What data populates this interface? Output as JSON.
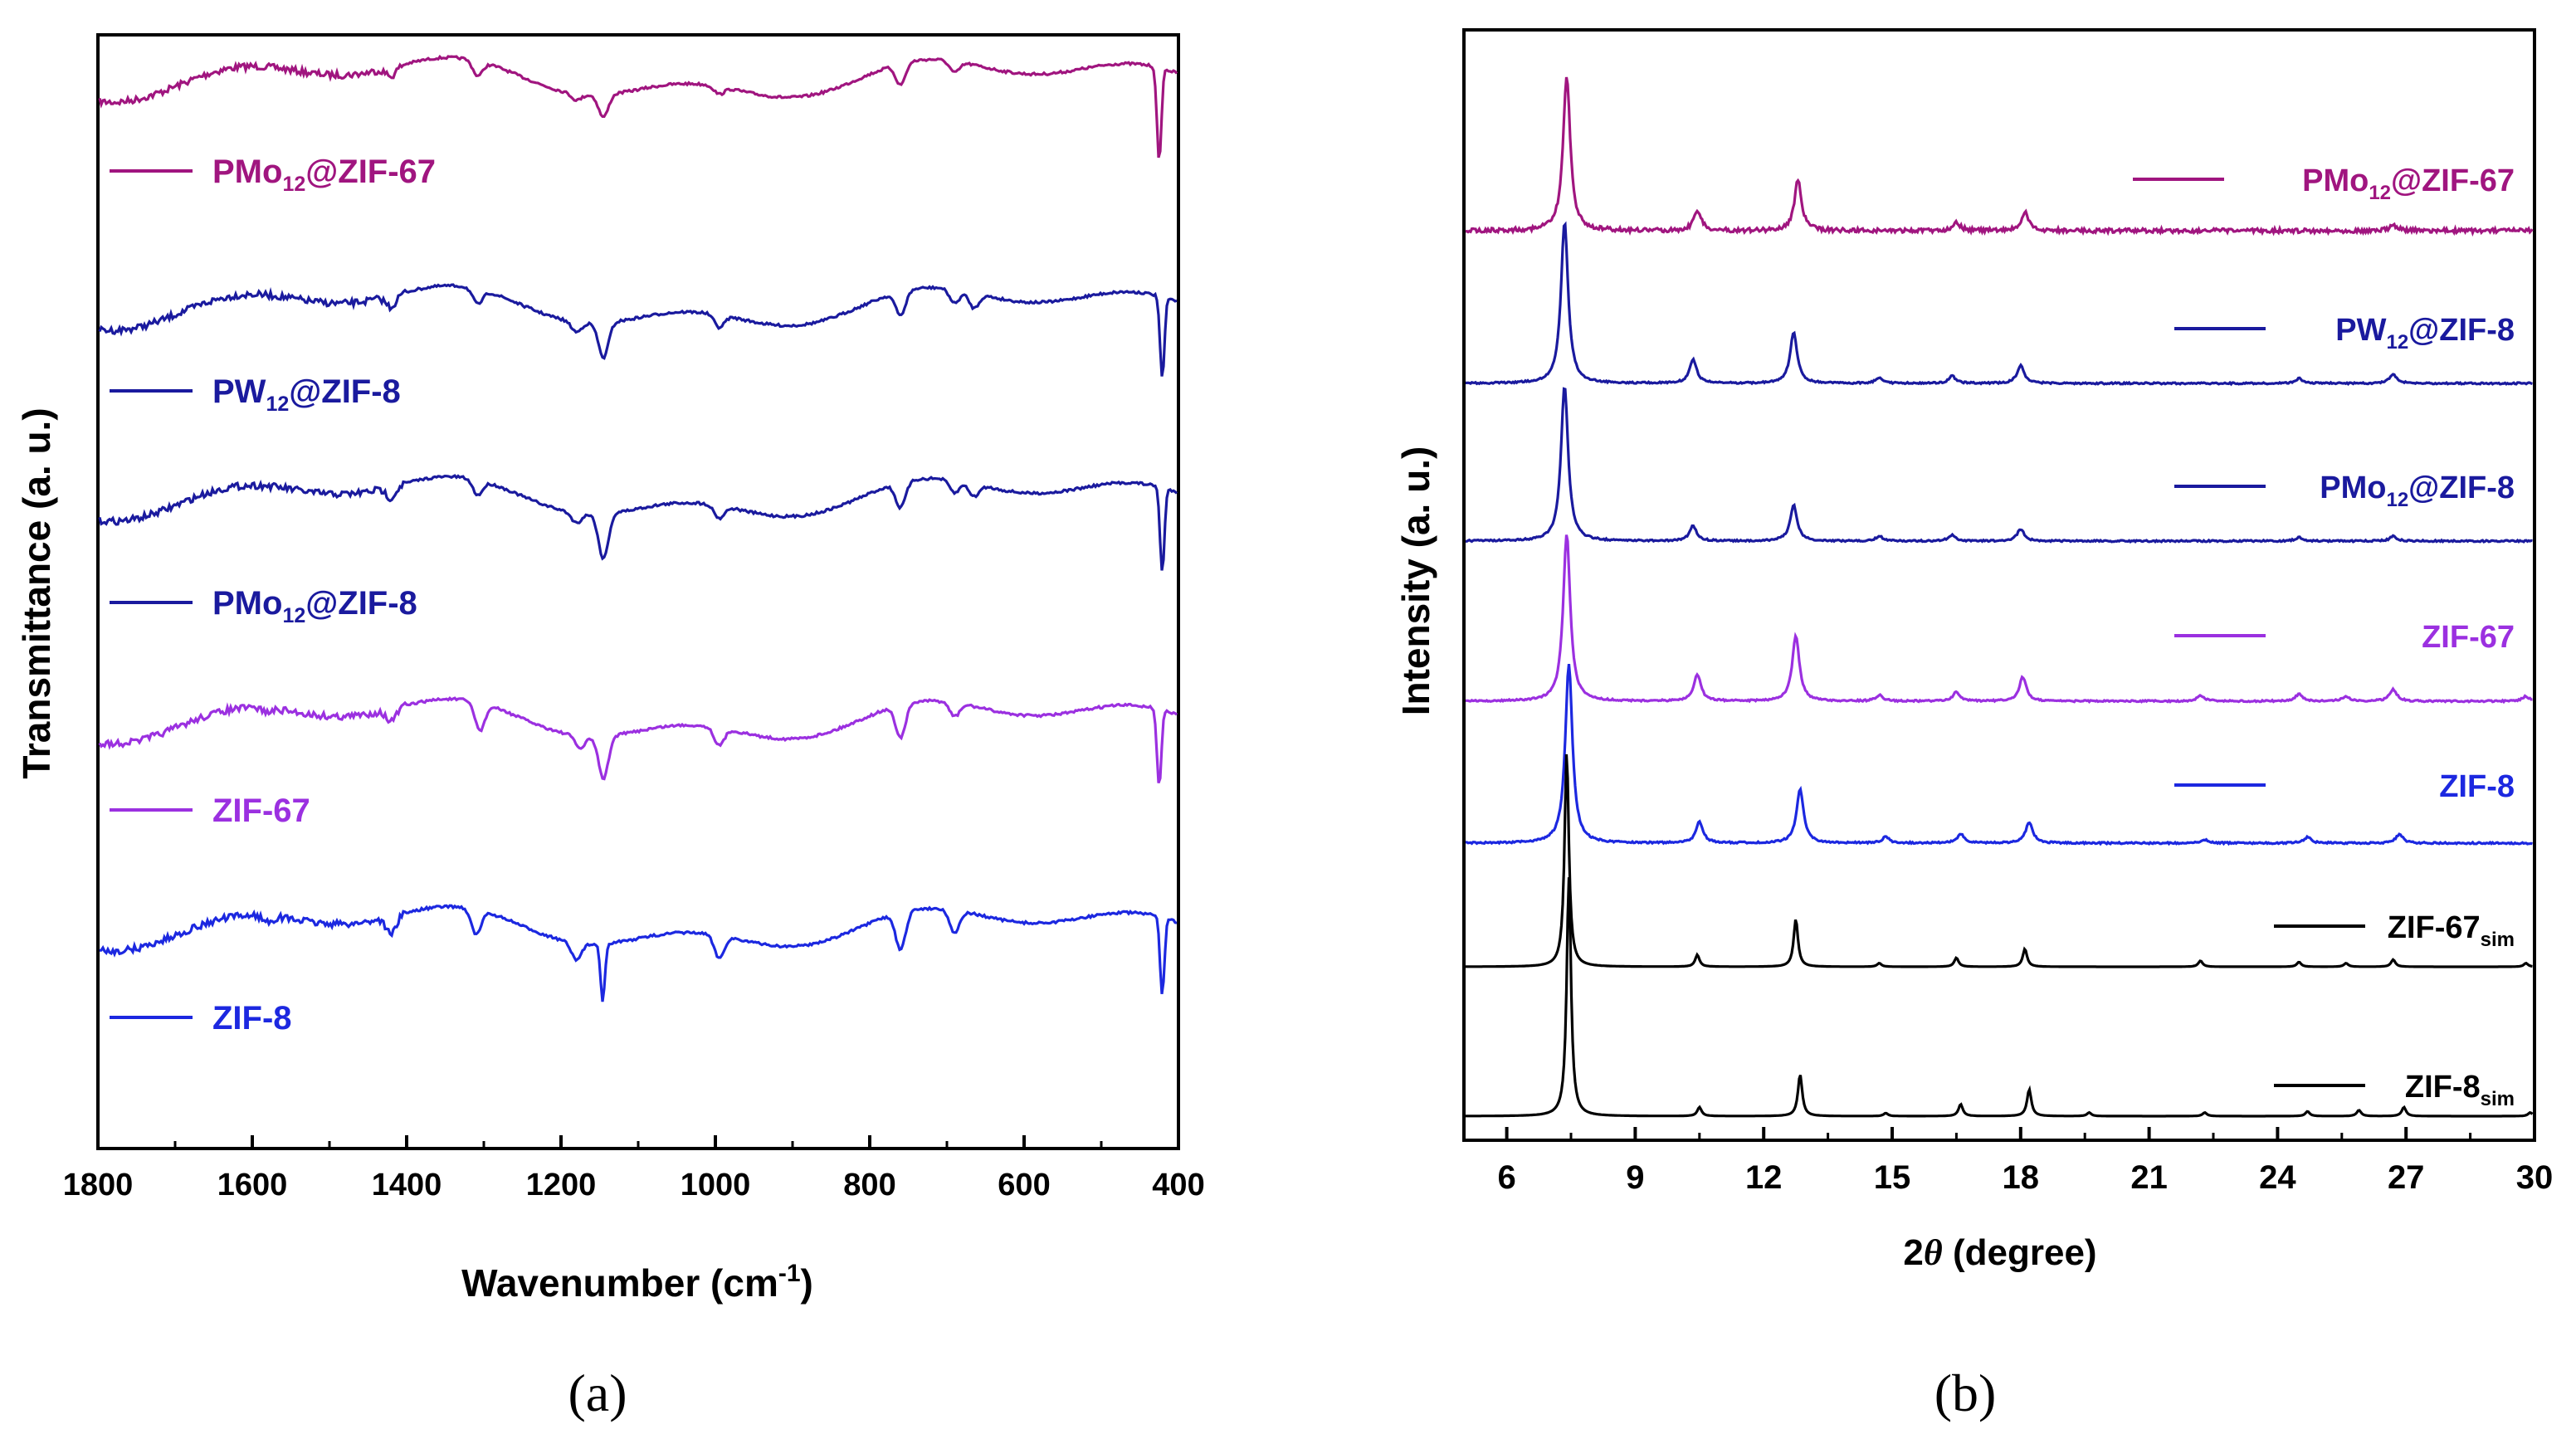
{
  "chart_data": [
    {
      "type": "line",
      "panel": "(a)",
      "xlabel": "Wavenumber (cm",
      "xlabel_sup": "-1",
      "xlabel_end": ")",
      "ylabel": "Transmittance (a. u.)",
      "xlim": [
        1800,
        400
      ],
      "xticks": [
        1800,
        1600,
        1400,
        1200,
        1000,
        800,
        600,
        400
      ],
      "series": [
        {
          "name": "PMo12@ZIF-67",
          "label_main": "PMo",
          "label_sub": "12",
          "label_end": "@ZIF-67",
          "color": "#a0157f",
          "peaks": [
            {
              "x": 1420,
              "d": 0.35
            },
            {
              "x": 1308,
              "d": 0.6
            },
            {
              "x": 1180,
              "d": 0.25
            },
            {
              "x": 1145,
              "d": 0.9
            },
            {
              "x": 995,
              "d": 0.3
            },
            {
              "x": 760,
              "d": 0.85
            },
            {
              "x": 690,
              "d": 0.45
            },
            {
              "x": 425,
              "d": 3.8
            }
          ]
        },
        {
          "name": "PW12@ZIF-8",
          "label_main": "PW",
          "label_sub": "12",
          "label_end": "@ZIF-8",
          "color": "#1a1a9e",
          "peaks": [
            {
              "x": 1420,
              "d": 0.45
            },
            {
              "x": 1308,
              "d": 0.6
            },
            {
              "x": 1180,
              "d": 0.4
            },
            {
              "x": 1145,
              "d": 1.4
            },
            {
              "x": 995,
              "d": 0.5
            },
            {
              "x": 760,
              "d": 0.95
            },
            {
              "x": 690,
              "d": 0.55
            },
            {
              "x": 665,
              "d": 0.6
            },
            {
              "x": 421,
              "d": 3.3
            }
          ]
        },
        {
          "name": "PMo12@ZIF-8",
          "label_main": "PMo",
          "label_sub": "12",
          "label_end": "@ZIF-8",
          "color": "#1a1a9e",
          "peaks": [
            {
              "x": 1420,
              "d": 0.45
            },
            {
              "x": 1308,
              "d": 0.6
            },
            {
              "x": 1180,
              "d": 0.4
            },
            {
              "x": 1145,
              "d": 1.8
            },
            {
              "x": 995,
              "d": 0.5
            },
            {
              "x": 760,
              "d": 1.0
            },
            {
              "x": 690,
              "d": 0.5
            },
            {
              "x": 665,
              "d": 0.5
            },
            {
              "x": 421,
              "d": 3.4
            }
          ]
        },
        {
          "name": "ZIF-67",
          "label_main": "ZIF-67",
          "label_sub": "",
          "label_end": "",
          "color": "#9b30e0",
          "peaks": [
            {
              "x": 1580,
              "d": 0.15
            },
            {
              "x": 1420,
              "d": 0.5
            },
            {
              "x": 1305,
              "d": 1.1
            },
            {
              "x": 1175,
              "d": 0.5
            },
            {
              "x": 1145,
              "d": 1.7
            },
            {
              "x": 995,
              "d": 0.7
            },
            {
              "x": 760,
              "d": 1.3
            },
            {
              "x": 690,
              "d": 0.55
            },
            {
              "x": 425,
              "d": 3.1
            }
          ]
        },
        {
          "name": "ZIF-8",
          "label_main": "ZIF-8",
          "label_sub": "",
          "label_end": "",
          "color": "#1c28e0",
          "peaks": [
            {
              "x": 1580,
              "d": 0.25
            },
            {
              "x": 1420,
              "d": 0.7
            },
            {
              "x": 1310,
              "d": 1.0
            },
            {
              "x": 1180,
              "d": 0.7
            },
            {
              "x": 1146,
              "d": 2.3
            },
            {
              "x": 995,
              "d": 0.9
            },
            {
              "x": 760,
              "d": 1.5
            },
            {
              "x": 690,
              "d": 0.9
            },
            {
              "x": 421,
              "d": 3.1
            }
          ]
        }
      ]
    },
    {
      "type": "line",
      "panel": "(b)",
      "xlabel": "2",
      "xlabel_theta": "θ",
      "xlabel_end": " (degree)",
      "ylabel": "Intensity (a. u.)",
      "xlim": [
        5,
        30
      ],
      "xticks": [
        6,
        9,
        12,
        15,
        18,
        21,
        24,
        27,
        30
      ],
      "series": [
        {
          "name": "PMo12@ZIF-67",
          "label_main": "PMo",
          "label_sub": "12",
          "label_end": "@ZIF-67",
          "color": "#a0157f",
          "peaks": [
            {
              "x": 7.4,
              "h": 2.6
            },
            {
              "x": 10.45,
              "h": 0.35
            },
            {
              "x": 12.8,
              "h": 0.85
            },
            {
              "x": 16.5,
              "h": 0.15
            },
            {
              "x": 18.1,
              "h": 0.3
            },
            {
              "x": 26.7,
              "h": 0.1
            }
          ]
        },
        {
          "name": "PW12@ZIF-8",
          "label_main": "PW",
          "label_sub": "12",
          "label_end": "@ZIF-8",
          "color": "#1a1a9e",
          "peaks": [
            {
              "x": 7.35,
              "h": 2.7
            },
            {
              "x": 10.35,
              "h": 0.4
            },
            {
              "x": 12.7,
              "h": 0.85
            },
            {
              "x": 14.7,
              "h": 0.1
            },
            {
              "x": 16.4,
              "h": 0.12
            },
            {
              "x": 18.0,
              "h": 0.3
            },
            {
              "x": 24.5,
              "h": 0.08
            },
            {
              "x": 26.7,
              "h": 0.15
            }
          ]
        },
        {
          "name": "PMo12@ZIF-8",
          "label_main": "PMo",
          "label_sub": "12",
          "label_end": "@ZIF-8",
          "color": "#1a1a9e",
          "peaks": [
            {
              "x": 7.35,
              "h": 2.6
            },
            {
              "x": 10.35,
              "h": 0.25
            },
            {
              "x": 12.7,
              "h": 0.6
            },
            {
              "x": 14.7,
              "h": 0.08
            },
            {
              "x": 16.4,
              "h": 0.1
            },
            {
              "x": 18.0,
              "h": 0.2
            },
            {
              "x": 24.5,
              "h": 0.06
            },
            {
              "x": 26.7,
              "h": 0.08
            }
          ]
        },
        {
          "name": "ZIF-67",
          "label_main": "ZIF-67",
          "label_sub": "",
          "label_end": "",
          "color": "#9b30e0",
          "peaks": [
            {
              "x": 7.4,
              "h": 2.8
            },
            {
              "x": 10.45,
              "h": 0.45
            },
            {
              "x": 12.75,
              "h": 1.1
            },
            {
              "x": 14.7,
              "h": 0.1
            },
            {
              "x": 16.5,
              "h": 0.15
            },
            {
              "x": 18.05,
              "h": 0.4
            },
            {
              "x": 22.2,
              "h": 0.1
            },
            {
              "x": 24.5,
              "h": 0.12
            },
            {
              "x": 25.6,
              "h": 0.08
            },
            {
              "x": 26.7,
              "h": 0.2
            },
            {
              "x": 29.8,
              "h": 0.08
            }
          ]
        },
        {
          "name": "ZIF-8",
          "label_main": "ZIF-8",
          "label_sub": "",
          "label_end": "",
          "color": "#1c28e0",
          "peaks": [
            {
              "x": 7.45,
              "h": 3.0
            },
            {
              "x": 10.5,
              "h": 0.35
            },
            {
              "x": 12.85,
              "h": 0.9
            },
            {
              "x": 14.85,
              "h": 0.1
            },
            {
              "x": 16.6,
              "h": 0.15
            },
            {
              "x": 18.2,
              "h": 0.35
            },
            {
              "x": 22.3,
              "h": 0.06
            },
            {
              "x": 24.7,
              "h": 0.1
            },
            {
              "x": 26.85,
              "h": 0.15
            }
          ]
        },
        {
          "name": "ZIF-67sim",
          "label_main": "ZIF-67",
          "label_sub": "sim",
          "label_end": "",
          "color": "#000000",
          "peaks": [
            {
              "x": 7.4,
              "h": 3.6
            },
            {
              "x": 10.45,
              "h": 0.2
            },
            {
              "x": 12.75,
              "h": 0.8
            },
            {
              "x": 14.7,
              "h": 0.06
            },
            {
              "x": 16.5,
              "h": 0.15
            },
            {
              "x": 18.1,
              "h": 0.3
            },
            {
              "x": 22.2,
              "h": 0.1
            },
            {
              "x": 24.5,
              "h": 0.08
            },
            {
              "x": 25.6,
              "h": 0.06
            },
            {
              "x": 26.7,
              "h": 0.12
            },
            {
              "x": 29.8,
              "h": 0.06
            }
          ]
        },
        {
          "name": "ZIF-8sim",
          "label_main": "ZIF-8",
          "label_sub": "sim",
          "label_end": "",
          "color": "#000000",
          "peaks": [
            {
              "x": 7.45,
              "h": 4.0
            },
            {
              "x": 10.5,
              "h": 0.15
            },
            {
              "x": 12.85,
              "h": 0.7
            },
            {
              "x": 14.85,
              "h": 0.05
            },
            {
              "x": 16.6,
              "h": 0.2
            },
            {
              "x": 18.2,
              "h": 0.45
            },
            {
              "x": 19.6,
              "h": 0.06
            },
            {
              "x": 22.3,
              "h": 0.06
            },
            {
              "x": 24.7,
              "h": 0.08
            },
            {
              "x": 25.9,
              "h": 0.1
            },
            {
              "x": 26.95,
              "h": 0.15
            },
            {
              "x": 29.9,
              "h": 0.06
            }
          ]
        }
      ]
    }
  ]
}
